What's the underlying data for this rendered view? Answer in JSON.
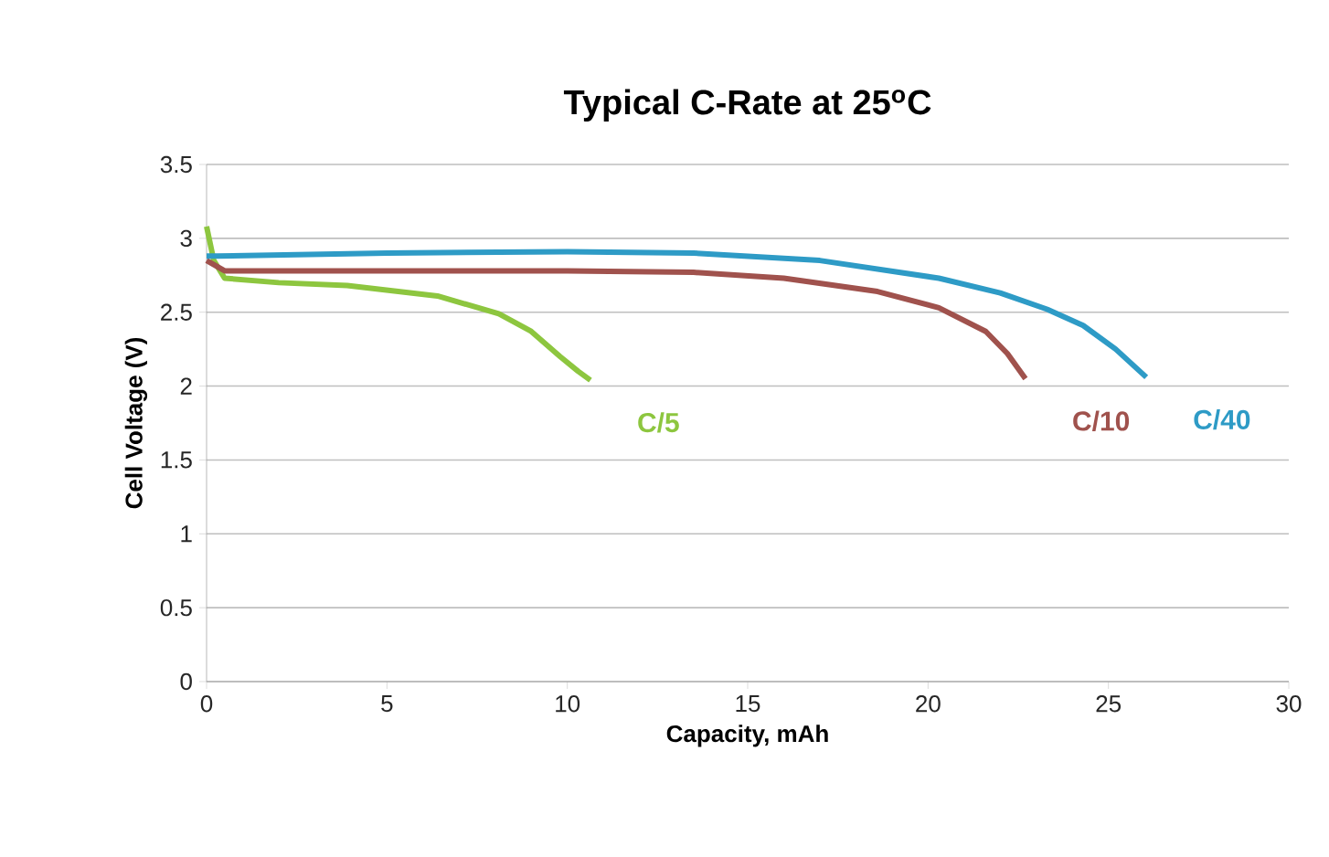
{
  "chart_data": {
    "type": "line",
    "title": "Typical C-Rate at 25$^{o}$C",
    "xlabel": "Capacity, mAh",
    "ylabel": "Cell Voltage (V)",
    "xlim": [
      0,
      30
    ],
    "xticks": [
      0,
      5,
      10,
      15,
      20,
      25,
      30
    ],
    "ylim": [
      0,
      3.5
    ],
    "yticks": [
      0,
      0.5,
      1,
      1.5,
      2,
      2.5,
      3,
      3.5
    ],
    "grid": "y",
    "legend": false,
    "marker": "none",
    "line_style": "solid",
    "series": [
      {
        "name": "C/5",
        "color": "#8dc63f",
        "x": [
          0,
          0.2,
          0.5,
          2,
          3.9,
          6.4,
          8.1,
          9.0,
          9.8,
          10.3,
          10.64
        ],
        "values": [
          3.08,
          2.85,
          2.73,
          2.7,
          2.68,
          2.61,
          2.49,
          2.37,
          2.2,
          2.1,
          2.04
        ]
      },
      {
        "name": "C/10",
        "color": "#a0524d",
        "x": [
          0,
          0.5,
          5,
          10,
          13.5,
          16,
          18.6,
          20.3,
          21.6,
          22.2,
          22.7
        ],
        "values": [
          2.85,
          2.78,
          2.78,
          2.78,
          2.77,
          2.73,
          2.64,
          2.53,
          2.37,
          2.22,
          2.05
        ]
      },
      {
        "name": "C/40",
        "color": "#2e9bc6",
        "x": [
          0,
          0.3,
          5,
          10,
          13.5,
          17,
          20.3,
          22.0,
          23.3,
          24.3,
          25.2,
          26.05
        ],
        "values": [
          2.88,
          2.88,
          2.9,
          2.91,
          2.9,
          2.85,
          2.73,
          2.63,
          2.52,
          2.41,
          2.25,
          2.06
        ]
      }
    ]
  }
}
